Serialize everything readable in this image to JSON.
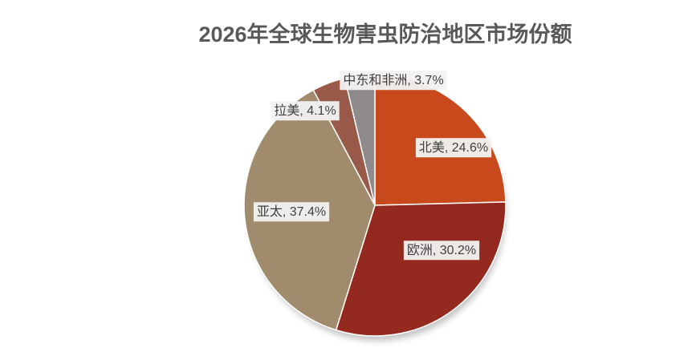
{
  "chart_data": {
    "type": "pie",
    "title": "2026年全球生物害虫防治地区市场份额",
    "categories": [
      "北美",
      "欧洲",
      "亚太",
      "拉美",
      "中东和非洲"
    ],
    "values": [
      24.6,
      30.2,
      37.4,
      4.1,
      3.7
    ],
    "value_labels": [
      "北美, 24.6%",
      "欧洲, 30.2%",
      "亚太, 37.4%",
      "拉美, 4.1%",
      "中东和非洲, 3.7%"
    ],
    "colors": [
      "#c84a1c",
      "#93291f",
      "#a08c6c",
      "#9a5a4a",
      "#8f8a8c"
    ]
  }
}
